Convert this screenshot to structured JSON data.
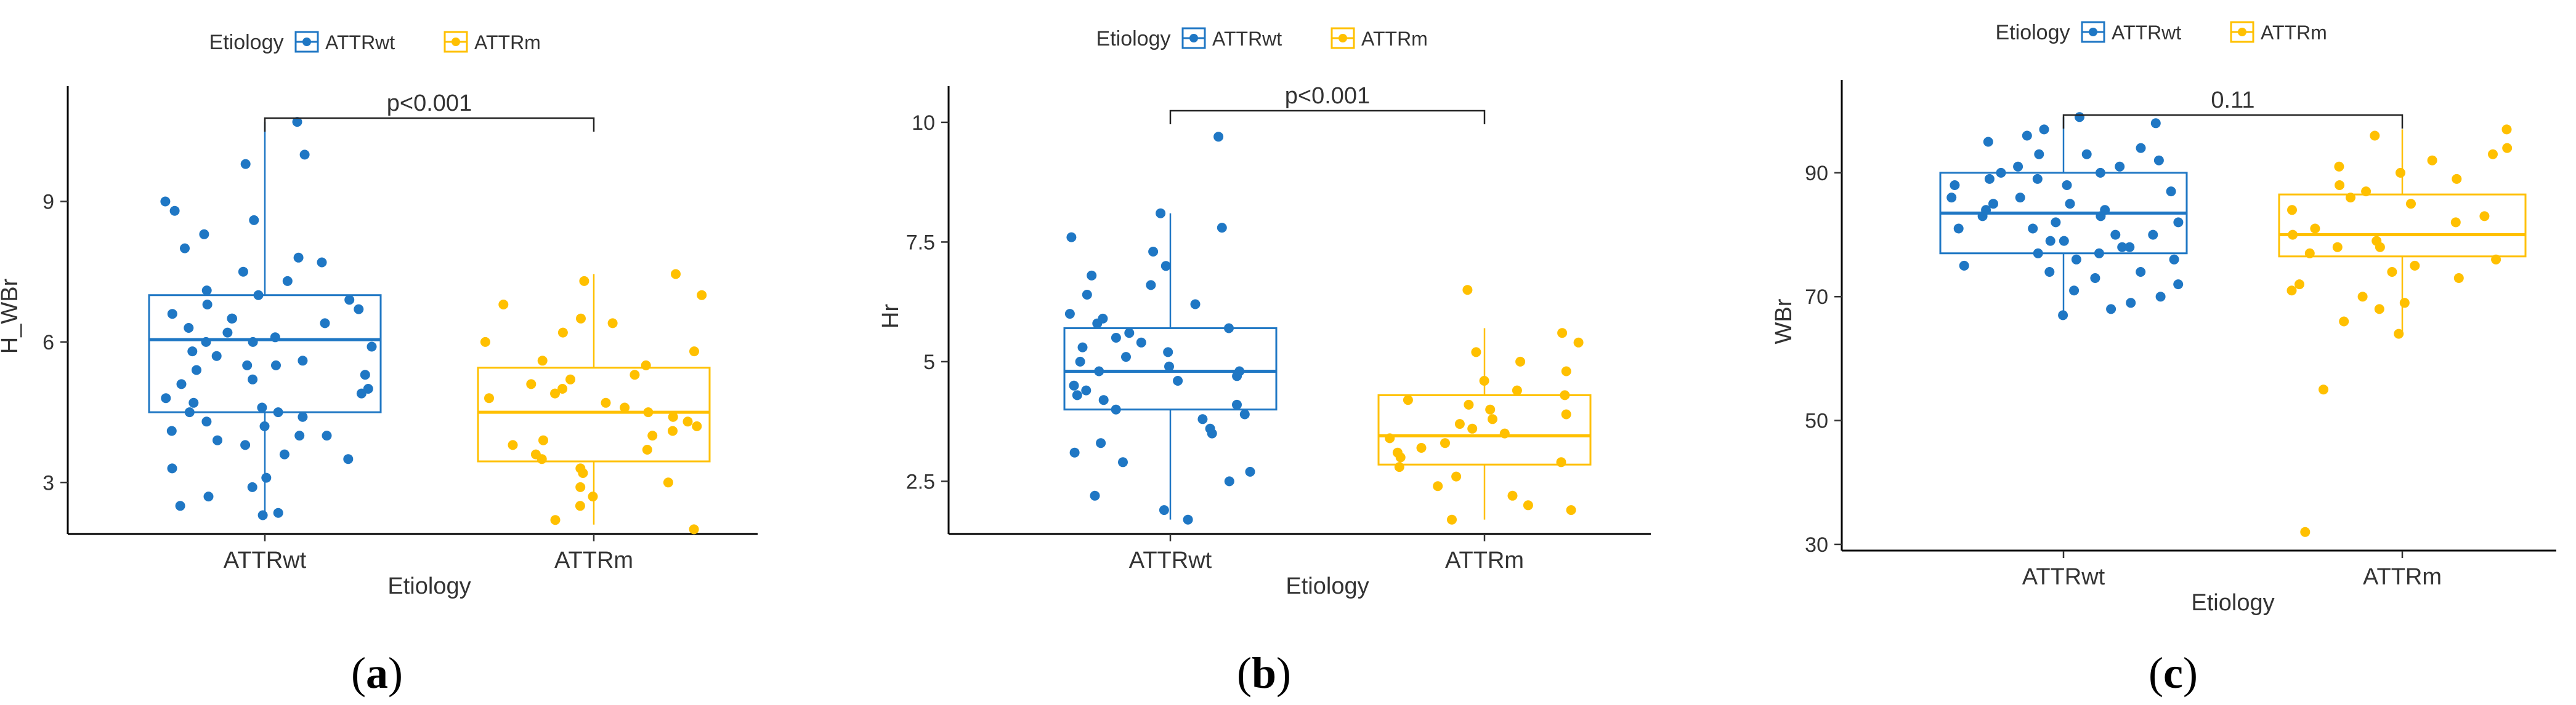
{
  "colors": {
    "wt": "#1f77c4",
    "wtLight": "#1a6fc2",
    "m": "#ffc000"
  },
  "chart_data": [
    {
      "type": "box",
      "panel_label": "(a)",
      "legend_title": "Etiology",
      "legend": [
        "ATTRwt",
        "ATTRm"
      ],
      "xlabel": "Etiology",
      "ylabel": "H_WBr",
      "categories": [
        "ATTRwt",
        "ATTRm"
      ],
      "ylim": [
        1.9,
        11.2
      ],
      "yticks": [
        3,
        6,
        9
      ],
      "annotation": "p<0.001",
      "boxes": [
        {
          "name": "ATTRwt",
          "min": 2.3,
          "q1": 4.5,
          "median": 6.05,
          "q3": 7.0,
          "max": 10.7
        },
        {
          "name": "ATTRm",
          "min": 2.1,
          "q1": 3.45,
          "median": 4.5,
          "q3": 5.45,
          "max": 7.45
        }
      ],
      "points": [
        [
          2.3,
          2.35,
          2.5,
          2.7,
          2.9,
          3.1,
          3.3,
          3.5,
          3.6,
          3.8,
          3.9,
          4.0,
          4.0,
          4.1,
          4.2,
          4.3,
          4.4,
          4.5,
          4.5,
          4.6,
          4.7,
          4.8,
          4.9,
          5.0,
          5.1,
          5.2,
          5.3,
          5.4,
          5.5,
          5.5,
          5.6,
          5.7,
          5.8,
          5.9,
          6.0,
          6.0,
          6.1,
          6.2,
          6.3,
          6.4,
          6.5,
          6.5,
          6.6,
          6.7,
          6.8,
          6.9,
          7.0,
          7.1,
          7.3,
          7.5,
          7.7,
          7.8,
          8.0,
          8.3,
          8.6,
          8.8,
          9.0,
          9.8,
          10.0,
          10.7
        ],
        [
          2.0,
          2.2,
          2.5,
          2.7,
          2.9,
          3.0,
          3.2,
          3.3,
          3.5,
          3.6,
          3.7,
          3.8,
          3.9,
          4.0,
          4.1,
          4.2,
          4.3,
          4.4,
          4.5,
          4.6,
          4.7,
          4.8,
          4.9,
          5.0,
          5.1,
          5.2,
          5.3,
          5.5,
          5.6,
          5.8,
          6.0,
          6.2,
          6.4,
          6.5,
          6.8,
          7.0,
          7.3,
          7.45
        ]
      ]
    },
    {
      "type": "box",
      "panel_label": "(b)",
      "legend_title": "Etiology",
      "legend": [
        "ATTRwt",
        "ATTRm"
      ],
      "xlabel": "Etiology",
      "ylabel": "Hr",
      "categories": [
        "ATTRwt",
        "ATTRm"
      ],
      "ylim": [
        1.4,
        10.5
      ],
      "yticks": [
        2.5,
        5.0,
        7.5,
        10.0
      ],
      "annotation": "p<0.001",
      "boxes": [
        {
          "name": "ATTRwt",
          "min": 1.7,
          "q1": 4.0,
          "median": 4.8,
          "q3": 5.7,
          "max": 8.1
        },
        {
          "name": "ATTRm",
          "min": 1.7,
          "q1": 2.85,
          "median": 3.45,
          "q3": 4.3,
          "max": 5.7
        }
      ],
      "points": [
        [
          1.7,
          1.9,
          2.2,
          2.5,
          2.7,
          2.9,
          3.1,
          3.3,
          3.5,
          3.6,
          3.8,
          3.9,
          4.0,
          4.1,
          4.2,
          4.3,
          4.4,
          4.5,
          4.6,
          4.7,
          4.8,
          4.8,
          4.9,
          5.0,
          5.1,
          5.2,
          5.3,
          5.4,
          5.5,
          5.6,
          5.7,
          5.8,
          5.9,
          6.0,
          6.2,
          6.4,
          6.6,
          6.8,
          7.0,
          7.3,
          7.6,
          7.8,
          8.1,
          9.7
        ],
        [
          1.7,
          1.9,
          2.0,
          2.2,
          2.4,
          2.6,
          2.8,
          2.9,
          3.0,
          3.1,
          3.2,
          3.3,
          3.4,
          3.5,
          3.6,
          3.7,
          3.8,
          3.9,
          4.0,
          4.1,
          4.2,
          4.3,
          4.4,
          4.6,
          4.8,
          5.0,
          5.2,
          5.4,
          5.6,
          6.5
        ]
      ]
    },
    {
      "type": "box",
      "panel_label": "(c)",
      "legend_title": "Etiology",
      "legend": [
        "ATTRwt",
        "ATTRm"
      ],
      "xlabel": "Etiology",
      "ylabel": "WBr",
      "categories": [
        "ATTRwt",
        "ATTRm"
      ],
      "ylim": [
        29,
        103
      ],
      "yticks": [
        30,
        50,
        70,
        90
      ],
      "annotation": "0.11",
      "boxes": [
        {
          "name": "ATTRwt",
          "min": 67,
          "q1": 77,
          "median": 83.5,
          "q3": 90,
          "max": 99
        },
        {
          "name": "ATTRm",
          "min": 64,
          "q1": 76.5,
          "median": 80,
          "q3": 86.5,
          "max": 97
        }
      ],
      "points": [
        [
          67,
          68,
          69,
          70,
          71,
          72,
          73,
          74,
          74,
          75,
          76,
          76,
          77,
          77,
          78,
          78,
          79,
          79,
          80,
          80,
          81,
          81,
          82,
          82,
          83,
          83,
          84,
          84,
          85,
          85,
          86,
          86,
          87,
          88,
          88,
          89,
          89,
          90,
          90,
          91,
          91,
          92,
          93,
          93,
          94,
          95,
          96,
          97,
          98,
          99
        ],
        [
          32,
          55,
          64,
          66,
          68,
          69,
          70,
          71,
          72,
          73,
          74,
          75,
          76,
          77,
          78,
          78,
          79,
          80,
          81,
          82,
          83,
          84,
          85,
          86,
          87,
          88,
          89,
          90,
          91,
          92,
          93,
          94,
          96,
          97
        ]
      ]
    }
  ]
}
